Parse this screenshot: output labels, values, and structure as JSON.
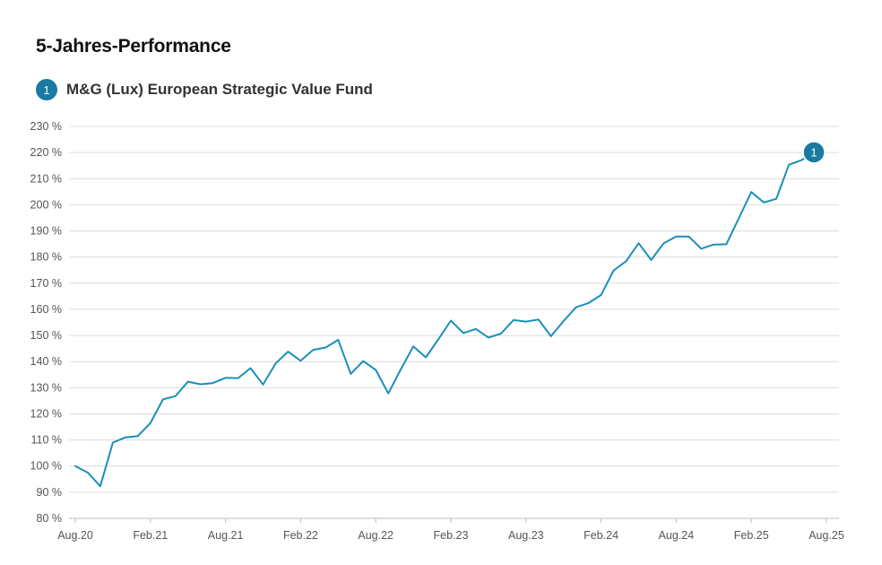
{
  "title": "5-Jahres-Performance",
  "legend": {
    "badge": "1",
    "label": "M&G (Lux) European Strategic Value Fund"
  },
  "colors": {
    "line": "#1a8fb8",
    "badge": "#1a7aa2",
    "grid": "#dcdcdc"
  },
  "chart_data": {
    "type": "line",
    "title": "5-Jahres-Performance",
    "y_ticks": [
      "80 %",
      "90 %",
      "100 %",
      "110 %",
      "120 %",
      "130 %",
      "140 %",
      "150 %",
      "160 %",
      "170 %",
      "180 %",
      "190 %",
      "200 %",
      "210 %",
      "220 %",
      "230 %"
    ],
    "ylim": [
      80,
      230
    ],
    "x_ticks": [
      "Aug.20",
      "Feb.21",
      "Aug.21",
      "Feb.22",
      "Aug.22",
      "Feb.23",
      "Aug.23",
      "Feb.24",
      "Aug.24",
      "Feb.25",
      "Aug.25"
    ],
    "xlim_months": [
      0,
      60
    ],
    "grid": true,
    "series": [
      {
        "name": "M&G (Lux) European Strategic Value Fund",
        "badge": "1",
        "points": [
          [
            0,
            100
          ],
          [
            1,
            97.5
          ],
          [
            2,
            92.3
          ],
          [
            3,
            109
          ],
          [
            4,
            111
          ],
          [
            5,
            111.5
          ],
          [
            6,
            116.5
          ],
          [
            7,
            125.5
          ],
          [
            8,
            126.8
          ],
          [
            9,
            132.3
          ],
          [
            10,
            131.3
          ],
          [
            11,
            131.8
          ],
          [
            12,
            133.8
          ],
          [
            13,
            133.7
          ],
          [
            14,
            137.5
          ],
          [
            15,
            131.2
          ],
          [
            16,
            139.3
          ],
          [
            17,
            143.8
          ],
          [
            18,
            140.3
          ],
          [
            19,
            144.5
          ],
          [
            20,
            145.4
          ],
          [
            21,
            148.3
          ],
          [
            22,
            135.3
          ],
          [
            23,
            140.2
          ],
          [
            24,
            136.8
          ],
          [
            25,
            127.8
          ],
          [
            26,
            137
          ],
          [
            27,
            145.8
          ],
          [
            28,
            141.6
          ],
          [
            29,
            148.5
          ],
          [
            30,
            155.7
          ],
          [
            31,
            150.9
          ],
          [
            32,
            152.5
          ],
          [
            33,
            149.2
          ],
          [
            34,
            150.7
          ],
          [
            35,
            155.9
          ],
          [
            36,
            155.3
          ],
          [
            37,
            156.1
          ],
          [
            38,
            149.7
          ],
          [
            39,
            155.5
          ],
          [
            40,
            160.8
          ],
          [
            41,
            162.4
          ],
          [
            42,
            165.5
          ],
          [
            43,
            174.9
          ],
          [
            44,
            178.4
          ],
          [
            45,
            185.3
          ],
          [
            46,
            178.9
          ],
          [
            47,
            185.3
          ],
          [
            48,
            187.9
          ],
          [
            49,
            187.9
          ],
          [
            50,
            183.2
          ],
          [
            51,
            184.8
          ],
          [
            52,
            184.9
          ],
          [
            53,
            194.8
          ],
          [
            54,
            204.9
          ],
          [
            55,
            200.9
          ],
          [
            56,
            202.3
          ],
          [
            57,
            215.3
          ],
          [
            58,
            217.1
          ],
          [
            59,
            220.1
          ]
        ]
      }
    ]
  }
}
